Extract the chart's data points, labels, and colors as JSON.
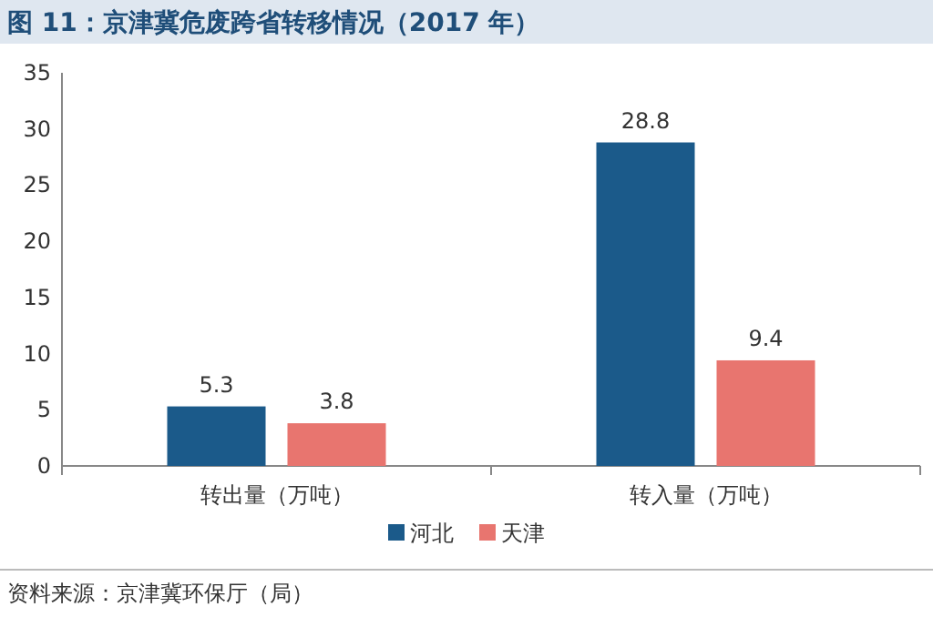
{
  "chart_data": {
    "type": "bar",
    "title": "图 11：京津冀危废跨省转移情况（2017 年）",
    "categories": [
      "转出量（万吨）",
      "转入量（万吨）"
    ],
    "series": [
      {
        "name": "河北",
        "color": "#1b5a8a",
        "values": [
          5.3,
          28.8
        ]
      },
      {
        "name": "天津",
        "color": "#e8756f",
        "values": [
          3.8,
          9.4
        ]
      }
    ],
    "ylim": [
      0,
      35
    ],
    "yticks": [
      0,
      5,
      10,
      15,
      20,
      25,
      30,
      35
    ],
    "data_labels": true,
    "legend": "bottom",
    "annotations": [
      "资料来源：京津冀环保厅（局）"
    ]
  }
}
